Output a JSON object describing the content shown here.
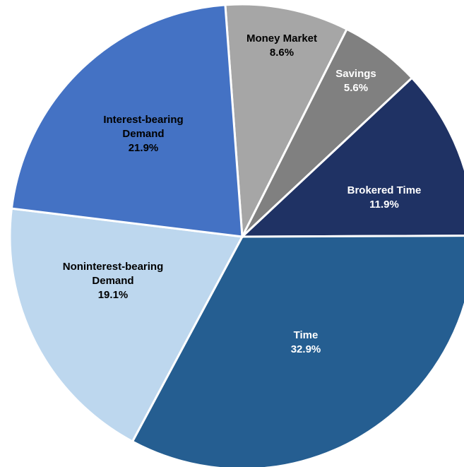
{
  "chart_data": {
    "type": "pie",
    "categories": [
      "Money Market",
      "Savings",
      "Brokered Time",
      "Time",
      "Noninterest-bearing Demand",
      "Interest-bearing Demand"
    ],
    "values": [
      8.6,
      5.6,
      11.9,
      32.9,
      19.1,
      21.9
    ],
    "value_labels": [
      "8.6%",
      "5.6%",
      "11.9%",
      "32.9%",
      "19.1%",
      "21.9%"
    ],
    "colors": [
      "#a6a6a6",
      "#808080",
      "#1f3264",
      "#255e91",
      "#bdd7ee",
      "#4472c4"
    ]
  }
}
